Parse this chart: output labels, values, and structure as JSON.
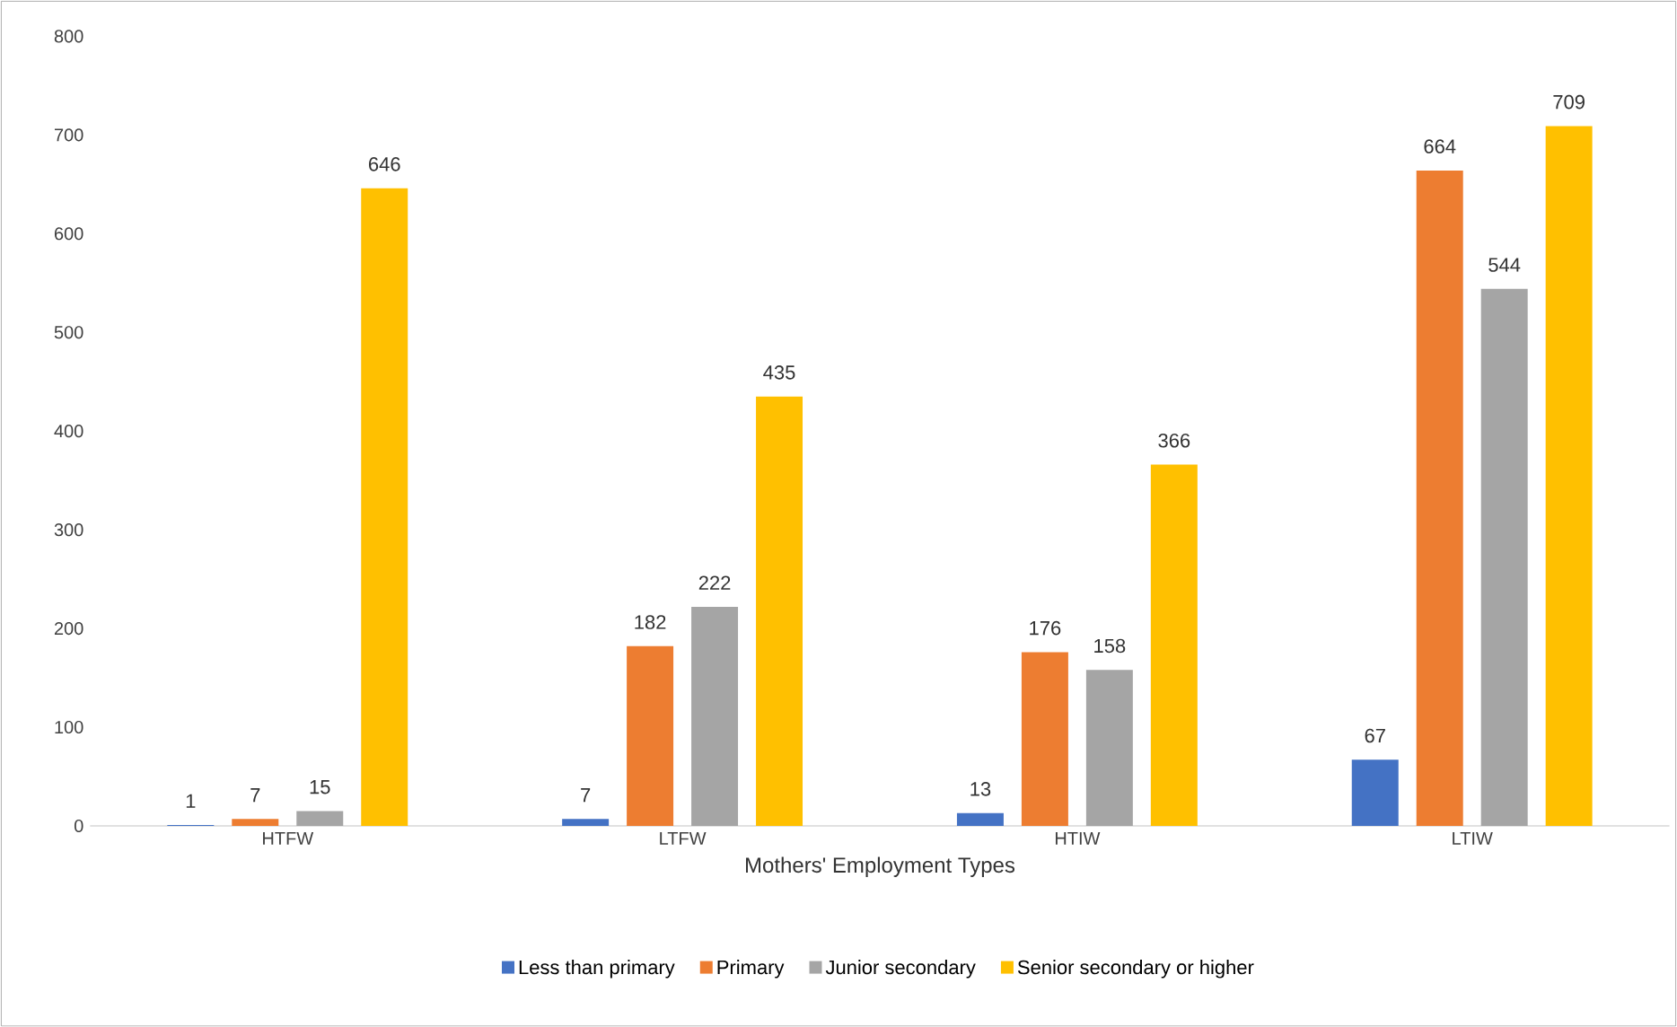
{
  "chart_data": {
    "type": "bar",
    "xlabel": "Mothers' Employment Types",
    "categories": [
      "HTFW",
      "LTFW",
      "HTIW",
      "LTIW"
    ],
    "series": [
      {
        "name": "Less than primary",
        "color": "#4472c4",
        "values": [
          1,
          7,
          13,
          67
        ]
      },
      {
        "name": "Primary",
        "color": "#ed7d31",
        "values": [
          7,
          182,
          176,
          664
        ]
      },
      {
        "name": "Junior secondary",
        "color": "#a5a5a5",
        "values": [
          15,
          222,
          158,
          544
        ]
      },
      {
        "name": "Senior secondary or higher",
        "color": "#ffc000",
        "values": [
          646,
          435,
          366,
          709
        ]
      }
    ],
    "ylim": [
      0,
      800
    ],
    "yticks": [
      0,
      100,
      200,
      300,
      400,
      500,
      600,
      700,
      800
    ],
    "data_labels": true,
    "legend": "bottom",
    "grid": false
  }
}
